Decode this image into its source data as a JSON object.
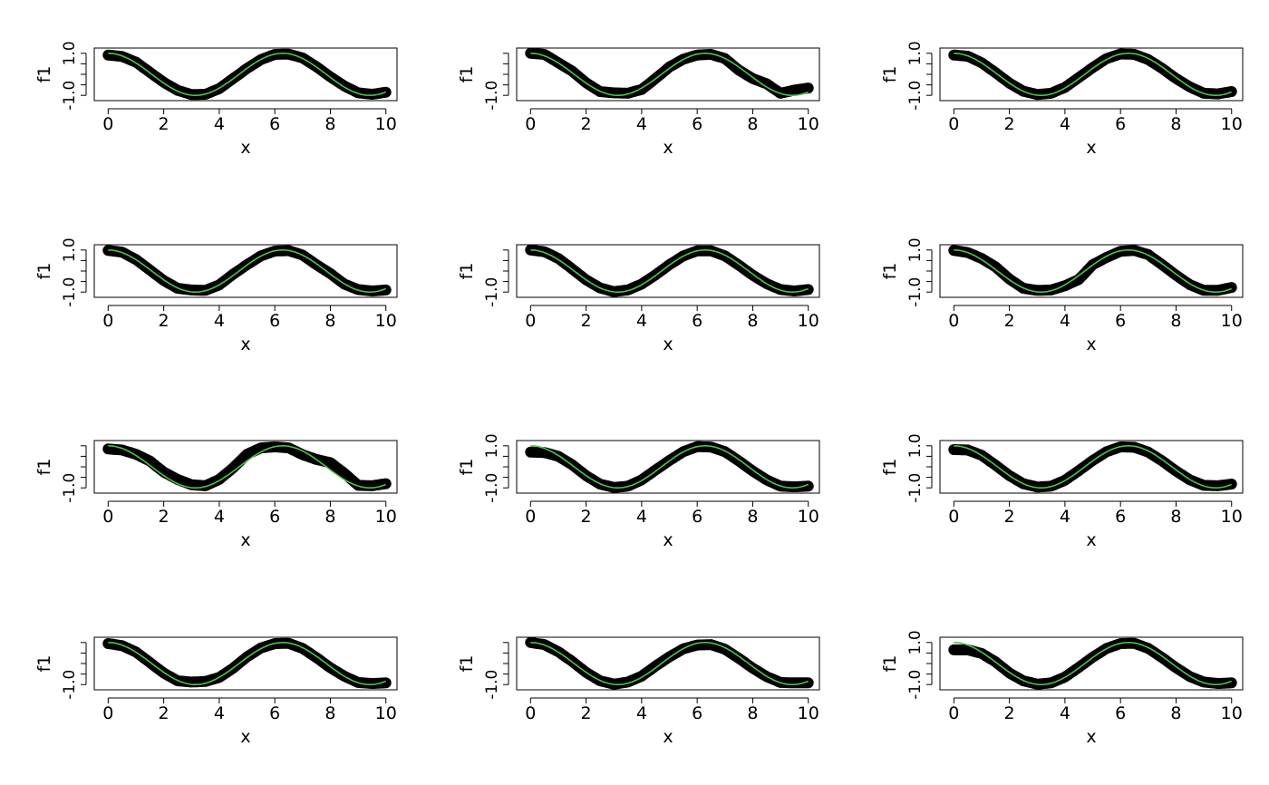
{
  "figure": {
    "rows": 4,
    "cols": 3,
    "marker_color": "#000000",
    "fit_color": "#4cc24c"
  },
  "chart_data": [
    {
      "type": "scatter",
      "xlabel": "x",
      "ylabel": "f1",
      "x_ticks": [
        "0",
        "2",
        "4",
        "6",
        "8",
        "10"
      ],
      "y_ticks": [
        "-1.0",
        "1.0"
      ],
      "xlim": [
        -0.5,
        10.4
      ],
      "ylim": [
        -1.25,
        1.25
      ],
      "fit": "cos(x)",
      "series": [
        {
          "x": [
            0,
            0.5,
            1,
            1.5,
            2,
            2.5,
            3,
            3.5,
            4,
            4.5,
            5,
            5.5,
            6,
            6.5,
            7,
            7.5,
            8,
            8.5,
            9,
            9.5,
            10
          ],
          "y": [
            0.92,
            0.85,
            0.58,
            0.1,
            -0.38,
            -0.76,
            -0.96,
            -0.95,
            -0.68,
            -0.2,
            0.28,
            0.7,
            0.95,
            0.96,
            0.78,
            0.36,
            -0.12,
            -0.55,
            -0.88,
            -0.95,
            -0.85
          ]
        }
      ]
    },
    {
      "type": "scatter",
      "xlabel": "x",
      "ylabel": "f1",
      "x_ticks": [
        "0",
        "2",
        "4",
        "6",
        "8",
        "10"
      ],
      "y_ticks": [
        "-1.0"
      ],
      "xlim": [
        -0.5,
        10.4
      ],
      "ylim": [
        -1.25,
        1.25
      ],
      "fit": "cos(x)",
      "series": [
        {
          "x": [
            0,
            0.5,
            1,
            1.5,
            2,
            2.5,
            3,
            3.5,
            4,
            4.5,
            5,
            5.5,
            6,
            6.5,
            7,
            7.5,
            8,
            8.5,
            9,
            9.5,
            10
          ],
          "y": [
            1.0,
            0.95,
            0.55,
            0.15,
            -0.4,
            -0.82,
            -0.88,
            -0.9,
            -0.72,
            -0.2,
            0.35,
            0.72,
            0.92,
            0.95,
            0.75,
            0.2,
            -0.2,
            -0.45,
            -0.9,
            -0.75,
            -0.65
          ]
        }
      ]
    },
    {
      "type": "scatter",
      "xlabel": "x",
      "ylabel": "f1",
      "x_ticks": [
        "0",
        "2",
        "4",
        "6",
        "8",
        "10"
      ],
      "y_ticks": [
        "-1.0",
        "1.0"
      ],
      "xlim": [
        -0.5,
        10.4
      ],
      "ylim": [
        -1.25,
        1.25
      ],
      "fit": "cos(x)",
      "series": [
        {
          "x": [
            0,
            0.5,
            1,
            1.5,
            2,
            2.5,
            3,
            3.5,
            4,
            4.5,
            5,
            5.5,
            6,
            6.5,
            7,
            7.5,
            8,
            8.5,
            9,
            9.5,
            10
          ],
          "y": [
            0.92,
            0.86,
            0.55,
            0.08,
            -0.42,
            -0.8,
            -0.96,
            -0.9,
            -0.62,
            -0.15,
            0.32,
            0.75,
            0.97,
            0.95,
            0.7,
            0.28,
            -0.2,
            -0.6,
            -0.9,
            -0.93,
            -0.82
          ]
        }
      ]
    },
    {
      "type": "scatter",
      "xlabel": "x",
      "ylabel": "f1",
      "x_ticks": [
        "0",
        "2",
        "4",
        "6",
        "8",
        "10"
      ],
      "y_ticks": [
        "-1.0",
        "1.0"
      ],
      "xlim": [
        -0.5,
        10.4
      ],
      "ylim": [
        -1.25,
        1.25
      ],
      "fit": "cos(x)",
      "series": [
        {
          "x": [
            0,
            0.5,
            1,
            1.5,
            2,
            2.5,
            3,
            3.5,
            4,
            4.5,
            5,
            5.5,
            6,
            6.5,
            7,
            7.5,
            8,
            8.5,
            9,
            9.5,
            10
          ],
          "y": [
            0.98,
            0.9,
            0.55,
            0.05,
            -0.45,
            -0.82,
            -0.9,
            -0.92,
            -0.66,
            -0.15,
            0.3,
            0.72,
            0.95,
            0.97,
            0.76,
            0.3,
            -0.12,
            -0.62,
            -0.88,
            -0.95,
            -0.9
          ]
        }
      ]
    },
    {
      "type": "scatter",
      "xlabel": "x",
      "ylabel": "f1",
      "x_ticks": [
        "0",
        "2",
        "4",
        "6",
        "8",
        "10"
      ],
      "y_ticks": [
        "-1.0"
      ],
      "xlim": [
        -0.5,
        10.4
      ],
      "ylim": [
        -1.25,
        1.25
      ],
      "fit": "cos(x)",
      "series": [
        {
          "x": [
            0,
            0.5,
            1,
            1.5,
            2,
            2.5,
            3,
            3.5,
            4,
            4.5,
            5,
            5.5,
            6,
            6.5,
            7,
            7.5,
            8,
            8.5,
            9,
            9.5,
            10
          ],
          "y": [
            1.0,
            0.92,
            0.6,
            0.1,
            -0.42,
            -0.8,
            -0.98,
            -0.9,
            -0.62,
            -0.18,
            0.3,
            0.72,
            0.96,
            0.96,
            0.72,
            0.28,
            -0.2,
            -0.6,
            -0.88,
            -0.95,
            -0.88
          ]
        }
      ]
    },
    {
      "type": "scatter",
      "xlabel": "x",
      "ylabel": "f1",
      "x_ticks": [
        "0",
        "2",
        "4",
        "6",
        "8",
        "10"
      ],
      "y_ticks": [
        "-1.0",
        "1.0"
      ],
      "xlim": [
        -0.5,
        10.4
      ],
      "ylim": [
        -1.25,
        1.25
      ],
      "fit": "cos(x)",
      "series": [
        {
          "x": [
            0,
            0.5,
            1,
            1.5,
            2,
            2.5,
            3,
            3.5,
            4,
            4.5,
            5,
            5.5,
            6,
            6.5,
            7,
            7.5,
            8,
            8.5,
            9,
            9.5,
            10
          ],
          "y": [
            0.98,
            0.88,
            0.6,
            0.2,
            -0.38,
            -0.82,
            -0.92,
            -0.9,
            -0.7,
            -0.4,
            0.3,
            0.65,
            0.94,
            0.98,
            0.78,
            0.3,
            -0.2,
            -0.65,
            -0.92,
            -0.92,
            -0.78
          ]
        }
      ]
    },
    {
      "type": "scatter",
      "xlabel": "x",
      "ylabel": "f1",
      "x_ticks": [
        "0",
        "2",
        "4",
        "6",
        "8",
        "10"
      ],
      "y_ticks": [
        "-1.0"
      ],
      "xlim": [
        -0.5,
        10.4
      ],
      "ylim": [
        -1.25,
        1.25
      ],
      "fit": "cos(x)",
      "series": [
        {
          "x": [
            0,
            0.5,
            1,
            1.5,
            2,
            2.5,
            3,
            3.5,
            4,
            4.5,
            5,
            5.5,
            6,
            6.5,
            7,
            7.5,
            8,
            8.5,
            9,
            9.5,
            10
          ],
          "y": [
            0.85,
            0.8,
            0.6,
            0.28,
            -0.25,
            -0.6,
            -0.85,
            -0.9,
            -0.6,
            -0.05,
            0.6,
            0.9,
            0.95,
            0.9,
            0.58,
            0.35,
            0.2,
            -0.3,
            -0.88,
            -0.9,
            -0.8
          ]
        }
      ]
    },
    {
      "type": "scatter",
      "xlabel": "x",
      "ylabel": "f1",
      "x_ticks": [
        "0",
        "2",
        "4",
        "6",
        "8",
        "10"
      ],
      "y_ticks": [
        "-1.0",
        "1.0"
      ],
      "xlim": [
        -0.5,
        10.4
      ],
      "ylim": [
        -1.25,
        1.25
      ],
      "fit": "cos(x)",
      "series": [
        {
          "x": [
            0,
            0.5,
            1,
            1.5,
            2,
            2.5,
            3,
            3.5,
            4,
            4.5,
            5,
            5.5,
            6,
            6.5,
            7,
            7.5,
            8,
            8.5,
            9,
            9.5,
            10
          ],
          "y": [
            0.7,
            0.68,
            0.5,
            0.1,
            -0.42,
            -0.82,
            -0.98,
            -0.92,
            -0.62,
            -0.15,
            0.3,
            0.72,
            0.96,
            0.94,
            0.72,
            0.28,
            -0.2,
            -0.62,
            -0.92,
            -0.95,
            -0.92
          ]
        }
      ]
    },
    {
      "type": "scatter",
      "xlabel": "x",
      "ylabel": "f1",
      "x_ticks": [
        "0",
        "2",
        "4",
        "6",
        "8",
        "10"
      ],
      "y_ticks": [
        "-1.0",
        "1.0"
      ],
      "xlim": [
        -0.5,
        10.4
      ],
      "ylim": [
        -1.25,
        1.25
      ],
      "fit": "cos(x)",
      "series": [
        {
          "x": [
            0,
            0.5,
            1,
            1.5,
            2,
            2.5,
            3,
            3.5,
            4,
            4.5,
            5,
            5.5,
            6,
            6.5,
            7,
            7.5,
            8,
            8.5,
            9,
            9.5,
            10
          ],
          "y": [
            0.82,
            0.8,
            0.55,
            0.08,
            -0.42,
            -0.8,
            -0.96,
            -0.92,
            -0.64,
            -0.18,
            0.3,
            0.72,
            0.95,
            0.93,
            0.7,
            0.28,
            -0.2,
            -0.62,
            -0.88,
            -0.9,
            -0.82
          ]
        }
      ]
    },
    {
      "type": "scatter",
      "xlabel": "x",
      "ylabel": "f1",
      "x_ticks": [
        "0",
        "2",
        "4",
        "6",
        "8",
        "10"
      ],
      "y_ticks": [
        "-1.0"
      ],
      "xlim": [
        -0.5,
        10.4
      ],
      "ylim": [
        -1.25,
        1.25
      ],
      "fit": "cos(x)",
      "series": [
        {
          "x": [
            0,
            0.5,
            1,
            1.5,
            2,
            2.5,
            3,
            3.5,
            4,
            4.5,
            5,
            5.5,
            6,
            6.5,
            7,
            7.5,
            8,
            8.5,
            9,
            9.5,
            10
          ],
          "y": [
            0.95,
            0.85,
            0.55,
            0.05,
            -0.45,
            -0.82,
            -0.88,
            -0.85,
            -0.66,
            -0.22,
            0.32,
            0.74,
            0.95,
            0.96,
            0.72,
            0.28,
            -0.2,
            -0.6,
            -0.9,
            -0.95,
            -0.92
          ]
        }
      ]
    },
    {
      "type": "scatter",
      "xlabel": "x",
      "ylabel": "f1",
      "x_ticks": [
        "0",
        "2",
        "4",
        "6",
        "8",
        "10"
      ],
      "y_ticks": [
        "-1.0"
      ],
      "xlim": [
        -0.5,
        10.4
      ],
      "ylim": [
        -1.25,
        1.25
      ],
      "fit": "cos(x)",
      "series": [
        {
          "x": [
            0,
            0.5,
            1,
            1.5,
            2,
            2.5,
            3,
            3.5,
            4,
            4.5,
            5,
            5.5,
            6,
            6.5,
            7,
            7.5,
            8,
            8.5,
            9,
            9.5,
            10
          ],
          "y": [
            1.0,
            0.9,
            0.56,
            0.1,
            -0.42,
            -0.82,
            -0.98,
            -0.88,
            -0.6,
            -0.12,
            0.32,
            0.7,
            0.88,
            0.9,
            0.68,
            0.25,
            -0.22,
            -0.62,
            -0.9,
            -0.92,
            -0.92
          ]
        }
      ]
    },
    {
      "type": "scatter",
      "xlabel": "x",
      "ylabel": "f1",
      "x_ticks": [
        "0",
        "2",
        "4",
        "6",
        "8",
        "10"
      ],
      "y_ticks": [
        "-1.0",
        "1.0"
      ],
      "xlim": [
        -0.5,
        10.4
      ],
      "ylim": [
        -1.25,
        1.25
      ],
      "fit": "cos(x)",
      "series": [
        {
          "x": [
            0,
            0.5,
            1,
            1.5,
            2,
            2.5,
            3,
            3.5,
            4,
            4.5,
            5,
            5.5,
            6,
            6.5,
            7,
            7.5,
            8,
            8.5,
            9,
            9.5,
            10
          ],
          "y": [
            0.65,
            0.65,
            0.48,
            0.08,
            -0.45,
            -0.82,
            -0.98,
            -0.92,
            -0.64,
            -0.18,
            0.3,
            0.72,
            0.95,
            0.96,
            0.72,
            0.28,
            -0.2,
            -0.62,
            -0.88,
            -0.95,
            -0.92
          ]
        }
      ]
    }
  ]
}
